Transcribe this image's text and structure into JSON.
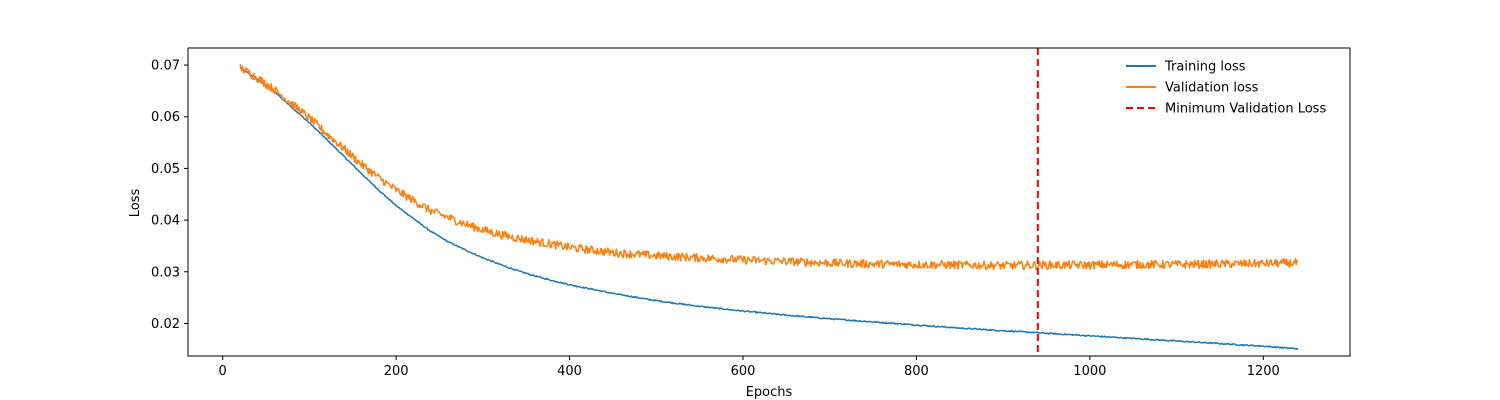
{
  "chart_data": {
    "type": "line",
    "title": "",
    "xlabel": "Epochs",
    "ylabel": "Loss",
    "xlim": [
      -40,
      1300
    ],
    "ylim": [
      0.0137,
      0.0733
    ],
    "xticks": [
      0,
      200,
      400,
      600,
      800,
      1000,
      1200
    ],
    "yticks": [
      0.02,
      0.03,
      0.04,
      0.05,
      0.06,
      0.07
    ],
    "xtick_labels": [
      "0",
      "200",
      "400",
      "600",
      "800",
      "1000",
      "1200"
    ],
    "ytick_labels": [
      "0.02",
      "0.03",
      "0.04",
      "0.05",
      "0.06",
      "0.07"
    ],
    "grid": false,
    "legend_position": "top-right",
    "series": [
      {
        "name": "Training loss",
        "color": "#1f77b4",
        "style": "solid",
        "x": [
          20,
          40,
          60,
          80,
          100,
          120,
          140,
          160,
          180,
          200,
          220,
          240,
          260,
          280,
          300,
          320,
          340,
          360,
          380,
          400,
          450,
          500,
          550,
          600,
          650,
          700,
          750,
          800,
          850,
          900,
          950,
          1000,
          1050,
          1100,
          1150,
          1200,
          1240
        ],
        "y": [
          0.0695,
          0.0672,
          0.0648,
          0.0618,
          0.0588,
          0.0556,
          0.0523,
          0.049,
          0.0458,
          0.0428,
          0.0403,
          0.0378,
          0.0358,
          0.0342,
          0.0327,
          0.0314,
          0.0302,
          0.0292,
          0.0283,
          0.0275,
          0.0258,
          0.0244,
          0.0233,
          0.0224,
          0.0216,
          0.0209,
          0.0203,
          0.0197,
          0.0191,
          0.0186,
          0.0181,
          0.0176,
          0.0171,
          0.0166,
          0.0161,
          0.0156,
          0.0151
        ]
      },
      {
        "name": "Validation loss",
        "color": "#ff7f0e",
        "style": "solid",
        "x": [
          20,
          40,
          60,
          80,
          100,
          120,
          140,
          160,
          180,
          200,
          220,
          240,
          260,
          280,
          300,
          320,
          340,
          360,
          380,
          400,
          450,
          500,
          550,
          600,
          650,
          700,
          750,
          800,
          850,
          900,
          950,
          1000,
          1050,
          1100,
          1150,
          1200,
          1240
        ],
        "y": [
          0.0695,
          0.0675,
          0.0652,
          0.0625,
          0.0597,
          0.0567,
          0.0538,
          0.0508,
          0.0482,
          0.0458,
          0.0438,
          0.0418,
          0.0405,
          0.0392,
          0.0381,
          0.0372,
          0.0365,
          0.0359,
          0.0353,
          0.0347,
          0.0337,
          0.0331,
          0.0327,
          0.0323,
          0.032,
          0.0317,
          0.0315,
          0.0314,
          0.0313,
          0.0312,
          0.0313,
          0.0313,
          0.0314,
          0.0314,
          0.0315,
          0.0316,
          0.0317
        ],
        "noise_amplitude": 0.0009
      },
      {
        "name": "Minimum Validation Loss",
        "color": "#ff0000",
        "style": "dashed",
        "type": "vline",
        "x": 940
      }
    ]
  }
}
